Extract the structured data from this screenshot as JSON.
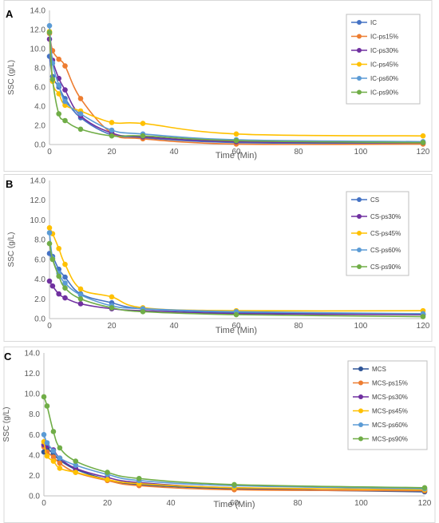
{
  "chart_data": [
    {
      "type": "line",
      "panel_label": "A",
      "xlabel": "Time (Min)",
      "ylabel": "SSC (g/L)",
      "xlim": [
        0,
        120
      ],
      "ylim": [
        0,
        14
      ],
      "x_ticks": [
        "0",
        "20",
        "40",
        "60",
        "80",
        "100",
        "120"
      ],
      "y_ticks": [
        "0.0",
        "2.0",
        "4.0",
        "6.0",
        "8.0",
        "10.0",
        "12.0",
        "14.0"
      ],
      "legend_position": "top-right",
      "grid": false,
      "series": [
        {
          "name": "IC",
          "color": "#4472C4",
          "points": [
            [
              0,
              9.2
            ],
            [
              1,
              7.1
            ],
            [
              3,
              6.0
            ],
            [
              5,
              4.8
            ],
            [
              10,
              2.8
            ],
            [
              20,
              1.0
            ],
            [
              30,
              0.7
            ],
            [
              60,
              0.2
            ],
            [
              120,
              0.1
            ]
          ]
        },
        {
          "name": "IC-ps15%",
          "color": "#ED7D31",
          "points": [
            [
              0,
              11.6
            ],
            [
              1,
              9.8
            ],
            [
              3,
              8.9
            ],
            [
              5,
              8.2
            ],
            [
              10,
              4.8
            ],
            [
              20,
              1.2
            ],
            [
              30,
              0.6
            ],
            [
              60,
              0.05
            ],
            [
              120,
              0.05
            ]
          ]
        },
        {
          "name": "IC-ps30%",
          "color": "#7030A0",
          "points": [
            [
              0,
              11.0
            ],
            [
              1,
              8.8
            ],
            [
              3,
              6.9
            ],
            [
              5,
              5.7
            ],
            [
              10,
              3.0
            ],
            [
              20,
              1.2
            ],
            [
              30,
              0.8
            ],
            [
              60,
              0.3
            ],
            [
              120,
              0.2
            ]
          ]
        },
        {
          "name": "IC-ps45%",
          "color": "#FFC000",
          "points": [
            [
              0,
              11.8
            ],
            [
              1,
              6.6
            ],
            [
              3,
              5.3
            ],
            [
              5,
              4.1
            ],
            [
              10,
              3.5
            ],
            [
              20,
              2.3
            ],
            [
              30,
              2.2
            ],
            [
              60,
              1.1
            ],
            [
              120,
              0.9
            ]
          ]
        },
        {
          "name": "IC-ps60%",
          "color": "#5B9BD5",
          "points": [
            [
              0,
              12.4
            ],
            [
              1,
              8.5
            ],
            [
              3,
              6.2
            ],
            [
              5,
              4.5
            ],
            [
              10,
              3.2
            ],
            [
              20,
              1.5
            ],
            [
              30,
              1.1
            ],
            [
              60,
              0.5
            ],
            [
              120,
              0.3
            ]
          ]
        },
        {
          "name": "IC-ps90%",
          "color": "#70AD47",
          "points": [
            [
              0,
              11.7
            ],
            [
              1,
              6.8
            ],
            [
              3,
              3.2
            ],
            [
              5,
              2.5
            ],
            [
              10,
              1.6
            ],
            [
              20,
              0.9
            ],
            [
              30,
              0.9
            ],
            [
              60,
              0.4
            ],
            [
              120,
              0.2
            ]
          ]
        }
      ]
    },
    {
      "type": "line",
      "panel_label": "B",
      "xlabel": "Time (Min)",
      "ylabel": "SSC (g/L)",
      "xlim": [
        0,
        120
      ],
      "ylim": [
        0,
        14
      ],
      "x_ticks": [
        "0",
        "20",
        "40",
        "60",
        "80",
        "100",
        "120"
      ],
      "y_ticks": [
        "0.0",
        "2.0",
        "4.0",
        "6.0",
        "8.0",
        "10.0",
        "12.0",
        "14.0"
      ],
      "legend_position": "top-right",
      "grid": false,
      "series": [
        {
          "name": "CS",
          "color": "#4472C4",
          "points": [
            [
              0,
              6.6
            ],
            [
              1,
              6.3
            ],
            [
              3,
              5.0
            ],
            [
              5,
              4.2
            ],
            [
              10,
              2.5
            ],
            [
              20,
              1.6
            ],
            [
              30,
              1.0
            ],
            [
              60,
              0.6
            ],
            [
              120,
              0.4
            ]
          ]
        },
        {
          "name": "CS-ps30%",
          "color": "#7030A0",
          "points": [
            [
              0,
              3.8
            ],
            [
              1,
              3.3
            ],
            [
              3,
              2.5
            ],
            [
              5,
              2.1
            ],
            [
              10,
              1.5
            ],
            [
              20,
              1.0
            ],
            [
              30,
              0.8
            ],
            [
              60,
              0.5
            ],
            [
              120,
              0.4
            ]
          ]
        },
        {
          "name": "CS-ps45%",
          "color": "#FFC000",
          "points": [
            [
              0,
              9.2
            ],
            [
              1,
              8.6
            ],
            [
              3,
              7.1
            ],
            [
              5,
              5.5
            ],
            [
              10,
              3.0
            ],
            [
              20,
              2.2
            ],
            [
              30,
              1.1
            ],
            [
              60,
              0.8
            ],
            [
              120,
              0.8
            ]
          ]
        },
        {
          "name": "CS-ps60%",
          "color": "#5B9BD5",
          "points": [
            [
              0,
              8.7
            ],
            [
              1,
              6.1
            ],
            [
              3,
              4.6
            ],
            [
              5,
              3.6
            ],
            [
              10,
              2.4
            ],
            [
              20,
              1.3
            ],
            [
              30,
              1.0
            ],
            [
              60,
              0.7
            ],
            [
              120,
              0.5
            ]
          ]
        },
        {
          "name": "CS-ps90%",
          "color": "#70AD47",
          "points": [
            [
              0,
              7.6
            ],
            [
              1,
              6.0
            ],
            [
              3,
              4.3
            ],
            [
              5,
              3.1
            ],
            [
              10,
              2.0
            ],
            [
              20,
              1.1
            ],
            [
              30,
              0.7
            ],
            [
              60,
              0.4
            ],
            [
              120,
              0.2
            ]
          ]
        }
      ]
    },
    {
      "type": "line",
      "panel_label": "C",
      "xlabel": "Time (Min)",
      "ylabel": "SSC (g/L)",
      "xlim": [
        0,
        120
      ],
      "ylim": [
        0,
        14
      ],
      "x_ticks": [
        "0",
        "20",
        "40",
        "60",
        "80",
        "100",
        "120"
      ],
      "y_ticks": [
        "0.0",
        "2.0",
        "4.0",
        "6.0",
        "8.0",
        "10.0",
        "12.0",
        "14.0"
      ],
      "legend_position": "top-right",
      "grid": false,
      "series": [
        {
          "name": "MCS",
          "color": "#2F5597",
          "points": [
            [
              0,
              4.3
            ],
            [
              1,
              4.6
            ],
            [
              3,
              4.1
            ],
            [
              5,
              3.5
            ],
            [
              10,
              2.6
            ],
            [
              20,
              1.6
            ],
            [
              30,
              1.1
            ],
            [
              60,
              0.7
            ],
            [
              120,
              0.4
            ]
          ]
        },
        {
          "name": "MCS-ps15%",
          "color": "#ED7D31",
          "points": [
            [
              0,
              4.8
            ],
            [
              1,
              4.3
            ],
            [
              3,
              3.8
            ],
            [
              5,
              3.2
            ],
            [
              10,
              2.3
            ],
            [
              20,
              1.5
            ],
            [
              30,
              1.0
            ],
            [
              60,
              0.6
            ],
            [
              120,
              0.5
            ]
          ]
        },
        {
          "name": "MCS-ps30%",
          "color": "#7030A0",
          "points": [
            [
              0,
              5.0
            ],
            [
              1,
              4.9
            ],
            [
              3,
              4.5
            ],
            [
              5,
              3.7
            ],
            [
              10,
              2.7
            ],
            [
              20,
              1.8
            ],
            [
              30,
              1.3
            ],
            [
              60,
              0.8
            ],
            [
              120,
              0.6
            ]
          ]
        },
        {
          "name": "MCS-ps45%",
          "color": "#FFC000",
          "points": [
            [
              0,
              5.3
            ],
            [
              1,
              3.9
            ],
            [
              3,
              3.4
            ],
            [
              5,
              2.7
            ],
            [
              10,
              2.3
            ],
            [
              20,
              1.6
            ],
            [
              30,
              1.2
            ],
            [
              60,
              0.8
            ],
            [
              120,
              0.6
            ]
          ]
        },
        {
          "name": "MCS-ps60%",
          "color": "#5B9BD5",
          "points": [
            [
              0,
              6.0
            ],
            [
              1,
              5.2
            ],
            [
              3,
              4.4
            ],
            [
              5,
              3.7
            ],
            [
              10,
              3.0
            ],
            [
              20,
              2.1
            ],
            [
              30,
              1.5
            ],
            [
              60,
              1.0
            ],
            [
              120,
              0.7
            ]
          ]
        },
        {
          "name": "MCS-ps90%",
          "color": "#70AD47",
          "points": [
            [
              0,
              9.7
            ],
            [
              1,
              8.8
            ],
            [
              3,
              6.3
            ],
            [
              5,
              4.7
            ],
            [
              10,
              3.4
            ],
            [
              20,
              2.3
            ],
            [
              30,
              1.7
            ],
            [
              60,
              1.1
            ],
            [
              120,
              0.8
            ]
          ]
        }
      ]
    }
  ]
}
